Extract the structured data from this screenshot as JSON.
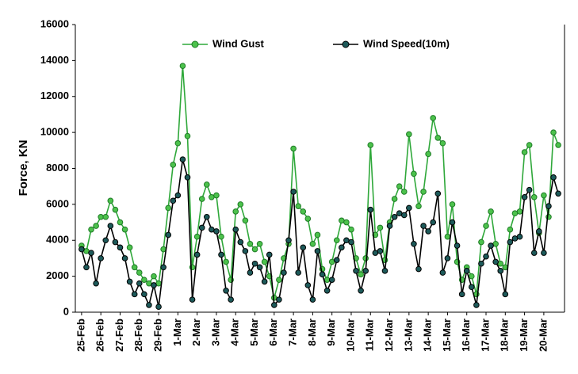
{
  "chart_data": {
    "type": "line",
    "y_label": "Force, KN",
    "categories": [
      "25-Feb",
      null,
      null,
      null,
      "26-Feb",
      null,
      null,
      null,
      "27-Feb",
      null,
      null,
      null,
      "28-Feb",
      null,
      null,
      null,
      "29-Feb",
      null,
      null,
      null,
      "1-Mar",
      null,
      null,
      null,
      "2-Mar",
      null,
      null,
      null,
      "3-Mar",
      null,
      null,
      null,
      "4-Mar",
      null,
      null,
      null,
      "5-Mar",
      null,
      null,
      null,
      "6-Mar",
      null,
      null,
      null,
      "7-Mar",
      null,
      null,
      null,
      "8-Mar",
      null,
      null,
      null,
      "9-Mar",
      null,
      null,
      null,
      "10-Mar",
      null,
      null,
      null,
      "11-Mar",
      null,
      null,
      null,
      "12-Mar",
      null,
      null,
      null,
      "13-Mar",
      null,
      null,
      null,
      "14-Mar",
      null,
      null,
      null,
      "15-Mar",
      null,
      null,
      null,
      "16-Mar",
      null,
      null,
      null,
      "17-Mar",
      null,
      null,
      null,
      "18-Mar",
      null,
      null,
      null,
      "19-Mar",
      null,
      null,
      null,
      "20-Mar",
      null,
      null,
      null
    ],
    "series": [
      {
        "name": "Wind Gust",
        "color": "#2fa83a",
        "marker_color": "#4cc24c",
        "values": [
          3700,
          3400,
          4600,
          4800,
          5300,
          5300,
          6200,
          5700,
          5000,
          4600,
          3600,
          2500,
          2200,
          1800,
          1600,
          2000,
          1600,
          3500,
          5800,
          8200,
          9400,
          13700,
          9800,
          2500,
          4200,
          6300,
          7100,
          6400,
          6500,
          4200,
          2800,
          1800,
          5600,
          6000,
          5100,
          3800,
          3500,
          3800,
          2800,
          2000,
          800,
          1800,
          3000,
          3800,
          9100,
          5900,
          5600,
          5200,
          3800,
          4300,
          2400,
          1800,
          2800,
          4000,
          5100,
          5000,
          4600,
          3000,
          2100,
          3000,
          9300,
          4300,
          4700,
          2900,
          5000,
          6300,
          7000,
          6700,
          9900,
          7700,
          5900,
          6700,
          8800,
          10800,
          9700,
          9400,
          4200,
          6000,
          2800,
          1800,
          2500,
          2000,
          1000,
          3900,
          4800,
          5600,
          3800,
          2700,
          2500,
          4600,
          5500,
          5600,
          8900,
          9300,
          6400,
          4400,
          6500,
          5300,
          10000,
          9300
        ]
      },
      {
        "name": "Wind Speed(10m)",
        "color": "#000000",
        "marker_color": "#1d5a5a",
        "values": [
          3500,
          2500,
          3300,
          1600,
          3000,
          4000,
          4800,
          3900,
          3600,
          3000,
          1700,
          1000,
          1600,
          1000,
          400,
          1500,
          300,
          2500,
          4300,
          6200,
          6500,
          8500,
          7500,
          700,
          3200,
          4700,
          5300,
          4600,
          4500,
          3200,
          1200,
          700,
          4600,
          3900,
          3400,
          2200,
          2700,
          2500,
          1700,
          3200,
          400,
          700,
          2200,
          4000,
          6700,
          2200,
          3600,
          1500,
          700,
          3400,
          2100,
          1200,
          1800,
          2900,
          3600,
          4000,
          3900,
          2300,
          1200,
          2300,
          5700,
          3300,
          3400,
          2300,
          4800,
          5300,
          5500,
          5400,
          5800,
          3800,
          2400,
          4800,
          4500,
          5000,
          6600,
          2200,
          3000,
          5000,
          3700,
          1000,
          2300,
          1400,
          400,
          2700,
          3100,
          3700,
          2800,
          2300,
          1000,
          3900,
          4100,
          4200,
          6400,
          6800,
          3300,
          4500,
          3300,
          5900,
          7500,
          6600
        ]
      }
    ],
    "ylim": [
      0,
      16000
    ],
    "yticks": [
      0,
      2000,
      4000,
      6000,
      8000,
      10000,
      12000,
      14000,
      16000
    ],
    "grid": false,
    "legend": "upper center"
  }
}
